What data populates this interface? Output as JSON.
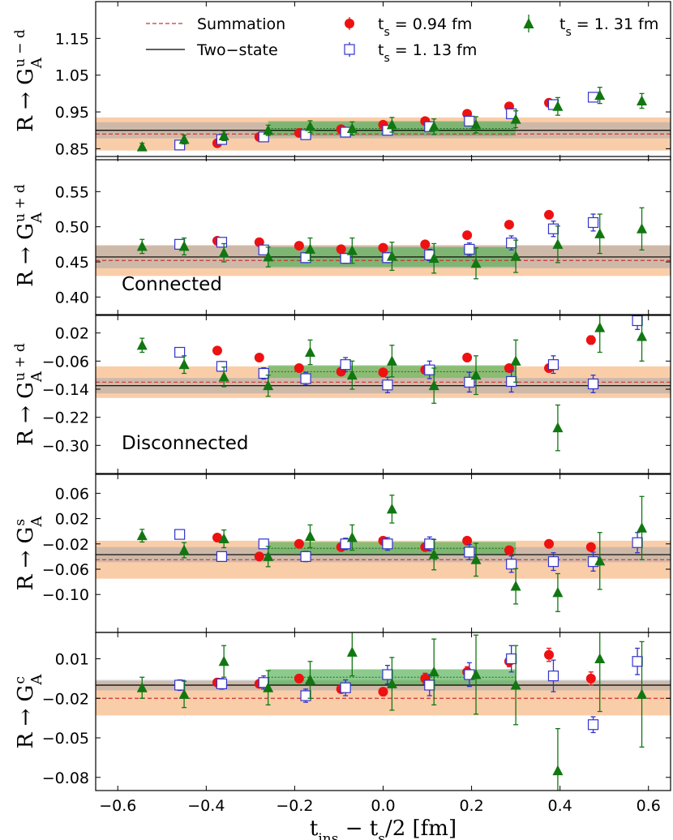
{
  "chart_data": {
    "type": "scatter",
    "xlabel": "t_ins − t_s/2 [fm]",
    "xlabel_parts": {
      "a": "t",
      "a_sub": "ins",
      "b": " − t",
      "b_sub": "s",
      "c": "/2 [fm]"
    },
    "xlim": [
      -0.65,
      0.65
    ],
    "xticks": [
      -0.6,
      -0.4,
      -0.2,
      0.0,
      0.2,
      0.4,
      0.6
    ],
    "xtick_labels": [
      "−0.6",
      "−0.4",
      "−0.2",
      "0.0",
      "0.2",
      "0.4",
      "0.6"
    ],
    "legend": {
      "summation": "Summation",
      "two_state": "Two−state",
      "ts094": "t_s = 0.94 fm",
      "ts113": "t_s = 1.13 fm",
      "ts131": "t_s = 1.31 fm",
      "ts_prefix": "t",
      "ts_sub": "s",
      "ts094_value": " = 0.94 fm",
      "ts113_value": " = 1. 13 fm",
      "ts131_value": " = 1. 31 fm"
    },
    "colors": {
      "ts094": "#ee1111",
      "ts113": "#3333cc",
      "ts131": "#117711",
      "summation_line": "#cc3333",
      "summation_band": "#f9c49a",
      "two_state_line": "#000000",
      "two_state_band": "#aaaaaa",
      "fit_band": "#5cb35c",
      "fit_line": "#1a6b1a"
    },
    "panels": [
      {
        "id": "u-d",
        "ylabel_main": "R → G",
        "ylabel_sub": "A",
        "ylabel_sup": "u − d",
        "annotation": "",
        "ylim": [
          0.82,
          1.25
        ],
        "yticks": [
          0.85,
          0.95,
          1.05,
          1.15
        ],
        "ytick_labels": [
          "0.85",
          "0.95",
          "1.05",
          "1.15"
        ],
        "summation": {
          "value": 0.89,
          "err": 0.045
        },
        "two_state": {
          "value": 0.9,
          "err": 0.022
        },
        "fit_band": {
          "x": [
            -0.26,
            0.3
          ],
          "center": 0.905,
          "err": 0.02
        },
        "series": [
          {
            "key": "ts094",
            "marker": "circle",
            "x": [
              -0.375,
              -0.28,
              -0.19,
              -0.095,
              0.0,
              0.095,
              0.19,
              0.285,
              0.375
            ],
            "y": [
              0.865,
              0.882,
              0.893,
              0.903,
              0.915,
              0.925,
              0.945,
              0.965,
              0.975
            ],
            "err": [
              0.004,
              0.004,
              0.004,
              0.004,
              0.004,
              0.004,
              0.004,
              0.004,
              0.004
            ]
          },
          {
            "key": "ts113",
            "marker": "square",
            "x": [
              -0.46,
              -0.365,
              -0.27,
              -0.175,
              -0.085,
              0.01,
              0.105,
              0.195,
              0.29,
              0.385,
              0.475
            ],
            "y": [
              0.86,
              0.875,
              0.882,
              0.888,
              0.895,
              0.9,
              0.91,
              0.925,
              0.945,
              0.97,
              0.99
            ],
            "err": [
              0.005,
              0.005,
              0.006,
              0.006,
              0.006,
              0.006,
              0.007,
              0.008,
              0.009,
              0.01,
              0.011
            ]
          },
          {
            "key": "ts131",
            "marker": "triangle",
            "x": [
              -0.545,
              -0.45,
              -0.36,
              -0.26,
              -0.165,
              -0.07,
              0.02,
              0.115,
              0.21,
              0.3,
              0.395,
              0.49,
              0.585
            ],
            "y": [
              0.855,
              0.875,
              0.885,
              0.9,
              0.91,
              0.905,
              0.915,
              0.91,
              0.915,
              0.93,
              0.965,
              0.995,
              0.98
            ],
            "err": [
              0.01,
              0.012,
              0.013,
              0.014,
              0.016,
              0.018,
              0.02,
              0.021,
              0.022,
              0.023,
              0.024,
              0.022,
              0.02
            ]
          }
        ]
      },
      {
        "id": "u+d-connected",
        "ylabel_main": "R → G",
        "ylabel_sub": "A",
        "ylabel_sup": "u + d",
        "annotation": "Connected",
        "ylim": [
          0.375,
          0.6
        ],
        "yticks": [
          0.4,
          0.45,
          0.5,
          0.55
        ],
        "ytick_labels": [
          "0.40",
          "0.45",
          "0.50",
          "0.55"
        ],
        "summation": {
          "value": 0.452,
          "err": 0.022
        },
        "two_state": {
          "value": 0.457,
          "err": 0.016
        },
        "fit_band": {
          "x": [
            -0.26,
            0.3
          ],
          "center": 0.457,
          "err": 0.014
        },
        "series": [
          {
            "key": "ts094",
            "marker": "circle",
            "x": [
              -0.375,
              -0.28,
              -0.19,
              -0.095,
              0.0,
              0.095,
              0.19,
              0.285,
              0.375
            ],
            "y": [
              0.48,
              0.478,
              0.473,
              0.468,
              0.47,
              0.475,
              0.488,
              0.503,
              0.517
            ],
            "err": [
              0.003,
              0.003,
              0.003,
              0.003,
              0.003,
              0.003,
              0.003,
              0.003,
              0.003
            ]
          },
          {
            "key": "ts113",
            "marker": "square",
            "x": [
              -0.46,
              -0.365,
              -0.27,
              -0.175,
              -0.085,
              0.01,
              0.105,
              0.195,
              0.29,
              0.385,
              0.475
            ],
            "y": [
              0.475,
              0.478,
              0.467,
              0.456,
              0.455,
              0.456,
              0.46,
              0.468,
              0.477,
              0.497,
              0.506
            ],
            "err": [
              0.005,
              0.006,
              0.006,
              0.007,
              0.007,
              0.007,
              0.008,
              0.009,
              0.01,
              0.011,
              0.012
            ]
          },
          {
            "key": "ts131",
            "marker": "triangle",
            "x": [
              -0.545,
              -0.45,
              -0.36,
              -0.26,
              -0.165,
              -0.07,
              0.02,
              0.115,
              0.21,
              0.3,
              0.395,
              0.49,
              0.585
            ],
            "y": [
              0.472,
              0.472,
              0.463,
              0.457,
              0.468,
              0.466,
              0.458,
              0.455,
              0.448,
              0.458,
              0.475,
              0.49,
              0.497
            ],
            "err": [
              0.01,
              0.012,
              0.013,
              0.014,
              0.016,
              0.018,
              0.02,
              0.021,
              0.022,
              0.023,
              0.026,
              0.028,
              0.03
            ]
          }
        ]
      },
      {
        "id": "u+d-disconnected",
        "ylabel_main": "R → G",
        "ylabel_sub": "A",
        "ylabel_sup": "u + d",
        "annotation": "Disconnected",
        "ylim": [
          -0.38,
          0.07
        ],
        "yticks": [
          -0.3,
          -0.22,
          -0.14,
          -0.06,
          0.02
        ],
        "ytick_labels": [
          "−0.30",
          "−0.22",
          "−0.14",
          "−0.06",
          "0.02"
        ],
        "summation": {
          "value": -0.12,
          "err": 0.045
        },
        "two_state": {
          "value": -0.13,
          "err": 0.022
        },
        "fit_band": {
          "x": [
            -0.26,
            0.3
          ],
          "center": -0.09,
          "err": 0.018
        },
        "series": [
          {
            "key": "ts094",
            "marker": "circle",
            "x": [
              -0.375,
              -0.28,
              -0.19,
              -0.095,
              0.0,
              0.095,
              0.19,
              0.285,
              0.375,
              0.47
            ],
            "y": [
              -0.03,
              -0.05,
              -0.08,
              -0.09,
              -0.092,
              -0.085,
              -0.05,
              -0.08,
              -0.08,
              0.0
            ],
            "err": [
              0.005,
              0.006,
              0.006,
              0.007,
              0.007,
              0.008,
              0.009,
              0.01,
              0.011,
              0.012
            ]
          },
          {
            "key": "ts113",
            "marker": "square",
            "x": [
              -0.46,
              -0.365,
              -0.27,
              -0.175,
              -0.085,
              0.01,
              0.105,
              0.195,
              0.29,
              0.385,
              0.475,
              0.575
            ],
            "y": [
              -0.035,
              -0.075,
              -0.095,
              -0.11,
              -0.07,
              -0.128,
              -0.085,
              -0.12,
              -0.118,
              -0.07,
              -0.125,
              0.055
            ],
            "err": [
              0.012,
              0.014,
              0.016,
              0.018,
              0.02,
              0.022,
              0.025,
              0.028,
              0.03,
              0.025,
              0.025,
              0.025
            ]
          },
          {
            "key": "ts131",
            "marker": "triangle",
            "x": [
              -0.545,
              -0.45,
              -0.36,
              -0.26,
              -0.165,
              -0.07,
              0.02,
              0.115,
              0.21,
              0.3,
              0.395,
              0.49,
              0.585
            ],
            "y": [
              -0.015,
              -0.07,
              -0.105,
              -0.13,
              -0.035,
              -0.1,
              -0.06,
              -0.13,
              -0.1,
              -0.06,
              -0.25,
              0.035,
              0.01
            ],
            "err": [
              0.02,
              0.025,
              0.028,
              0.03,
              0.035,
              0.04,
              0.045,
              0.05,
              0.055,
              0.06,
              0.065,
              0.07,
              0.07
            ]
          }
        ]
      },
      {
        "id": "s",
        "ylabel_main": "R → G",
        "ylabel_sub": "A",
        "ylabel_sup": "s",
        "annotation": "",
        "ylim": [
          -0.16,
          0.09
        ],
        "yticks": [
          -0.1,
          -0.06,
          -0.02,
          0.02,
          0.06
        ],
        "ytick_labels": [
          "−0.10",
          "−0.06",
          "−0.02",
          "0.02",
          "0.06"
        ],
        "summation": {
          "value": -0.045,
          "err": 0.03
        },
        "two_state": {
          "value": -0.037,
          "err": 0.012
        },
        "fit_band": {
          "x": [
            -0.26,
            0.3
          ],
          "center": -0.027,
          "err": 0.01
        },
        "series": [
          {
            "key": "ts094",
            "marker": "circle",
            "x": [
              -0.375,
              -0.28,
              -0.19,
              -0.095,
              0.0,
              0.095,
              0.19,
              0.285,
              0.375,
              0.47
            ],
            "y": [
              -0.01,
              -0.04,
              -0.02,
              -0.025,
              -0.015,
              -0.025,
              -0.015,
              -0.03,
              -0.02,
              -0.025
            ],
            "err": [
              0.003,
              0.003,
              0.004,
              0.004,
              0.004,
              0.004,
              0.005,
              0.005,
              0.006,
              0.006
            ]
          },
          {
            "key": "ts113",
            "marker": "square",
            "x": [
              -0.46,
              -0.365,
              -0.27,
              -0.175,
              -0.085,
              0.01,
              0.105,
              0.195,
              0.29,
              0.385,
              0.475,
              0.575
            ],
            "y": [
              -0.005,
              -0.04,
              -0.02,
              -0.04,
              -0.02,
              -0.02,
              -0.02,
              -0.033,
              -0.052,
              -0.048,
              -0.048,
              -0.018
            ],
            "err": [
              0.005,
              0.006,
              0.007,
              0.008,
              0.009,
              0.01,
              0.011,
              0.012,
              0.013,
              0.014,
              0.015,
              0.016
            ]
          },
          {
            "key": "ts131",
            "marker": "triangle",
            "x": [
              -0.545,
              -0.45,
              -0.36,
              -0.26,
              -0.165,
              -0.07,
              0.02,
              0.115,
              0.21,
              0.3,
              0.395,
              0.49,
              0.585
            ],
            "y": [
              -0.007,
              -0.03,
              -0.012,
              -0.04,
              -0.008,
              -0.01,
              0.035,
              -0.037,
              -0.045,
              -0.087,
              -0.097,
              -0.047,
              0.005
            ],
            "err": [
              0.01,
              0.012,
              0.014,
              0.016,
              0.018,
              0.02,
              0.022,
              0.024,
              0.026,
              0.028,
              0.03,
              0.045,
              0.05
            ]
          }
        ]
      },
      {
        "id": "c",
        "ylabel_main": "R → G",
        "ylabel_sub": "A",
        "ylabel_sup": "c",
        "annotation": "",
        "ylim": [
          -0.09,
          0.03
        ],
        "yticks": [
          -0.08,
          -0.05,
          -0.02,
          0.01
        ],
        "ytick_labels": [
          "−0.08",
          "−0.05",
          "−0.02",
          "0.01"
        ],
        "summation": {
          "value": -0.02,
          "err": 0.013
        },
        "two_state": {
          "value": -0.01,
          "err": 0.004
        },
        "fit_band": {
          "x": [
            -0.26,
            0.3
          ],
          "center": -0.004,
          "err": 0.006
        },
        "series": [
          {
            "key": "ts094",
            "marker": "circle",
            "x": [
              -0.375,
              -0.28,
              -0.19,
              -0.095,
              0.0,
              0.095,
              0.19,
              0.285,
              0.375,
              0.47
            ],
            "y": [
              -0.008,
              -0.009,
              -0.005,
              -0.013,
              -0.015,
              -0.005,
              0.0,
              0.008,
              0.013,
              -0.005
            ],
            "err": [
              0.003,
              0.003,
              0.003,
              0.003,
              0.003,
              0.004,
              0.004,
              0.004,
              0.005,
              0.005
            ]
          },
          {
            "key": "ts113",
            "marker": "square",
            "x": [
              -0.46,
              -0.365,
              -0.27,
              -0.175,
              -0.085,
              0.01,
              0.105,
              0.195,
              0.29,
              0.385,
              0.475,
              0.575
            ],
            "y": [
              -0.01,
              -0.009,
              -0.008,
              -0.018,
              -0.012,
              -0.002,
              -0.01,
              -0.002,
              0.01,
              -0.003,
              -0.04,
              0.008
            ],
            "err": [
              0.004,
              0.004,
              0.005,
              0.005,
              0.006,
              0.007,
              0.008,
              0.009,
              0.01,
              0.012,
              0.006,
              0.01
            ]
          },
          {
            "key": "ts131",
            "marker": "triangle",
            "x": [
              -0.545,
              -0.45,
              -0.36,
              -0.26,
              -0.165,
              -0.07,
              0.02,
              0.115,
              0.21,
              0.3,
              0.395,
              0.49,
              0.585
            ],
            "y": [
              -0.012,
              -0.017,
              0.008,
              -0.012,
              -0.006,
              0.015,
              -0.009,
              0.0,
              -0.002,
              -0.01,
              -0.075,
              0.01,
              -0.017
            ],
            "err": [
              0.008,
              0.01,
              0.012,
              0.013,
              0.014,
              0.018,
              0.02,
              0.025,
              0.03,
              0.03,
              0.032,
              0.04,
              0.04
            ]
          }
        ]
      }
    ]
  }
}
